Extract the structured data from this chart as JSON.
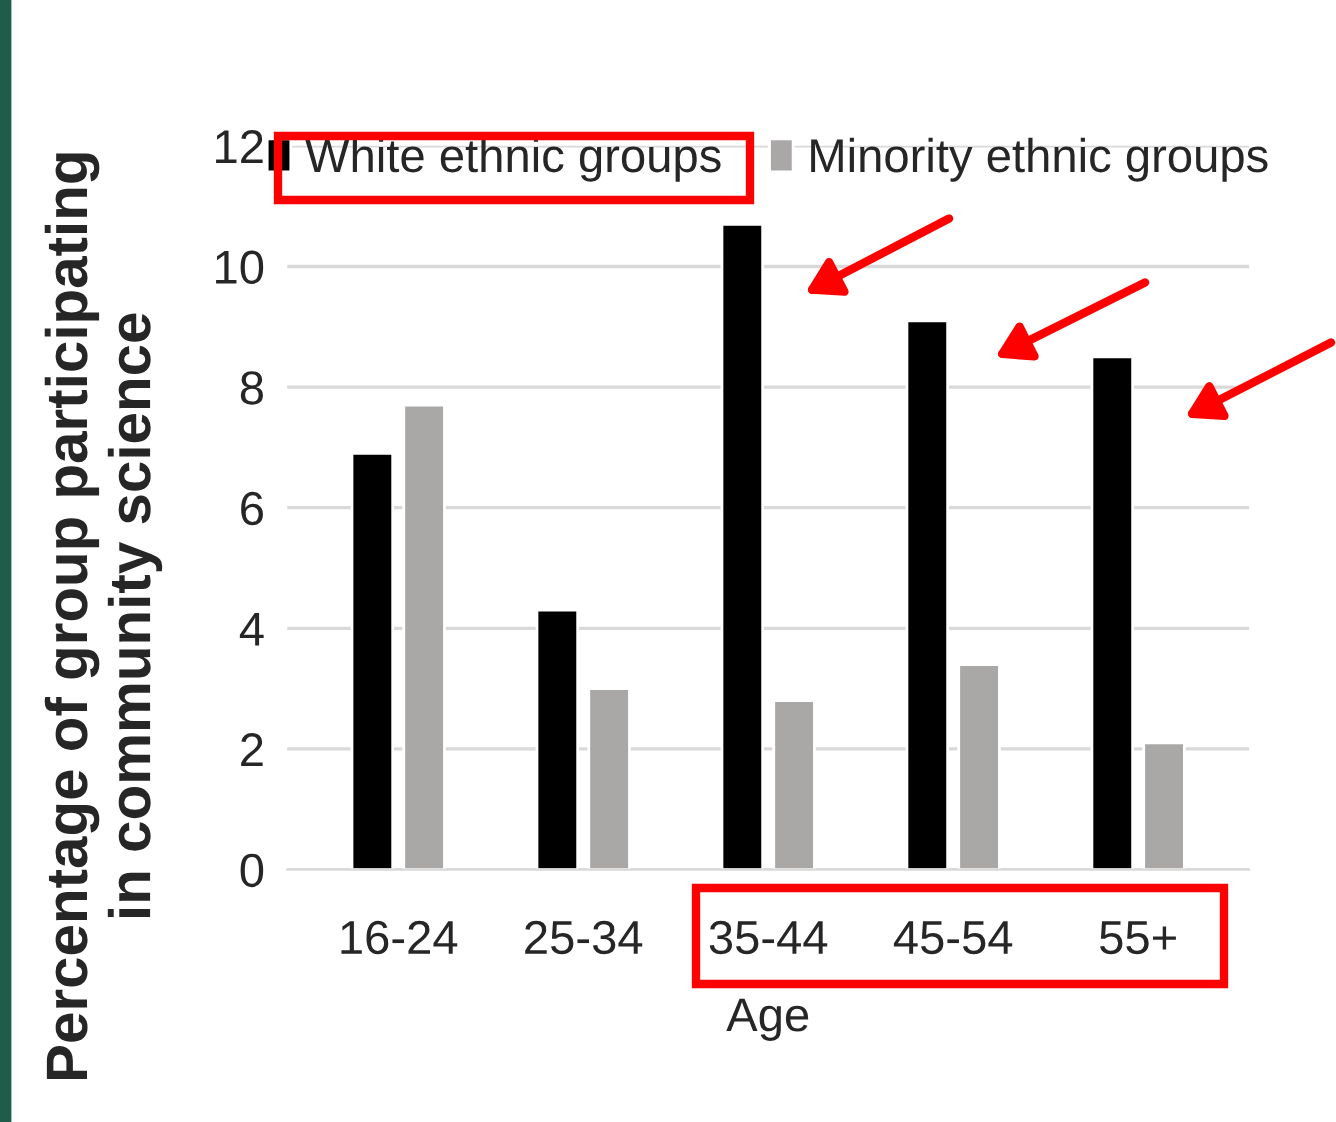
{
  "chart_data": {
    "type": "bar",
    "xlabel": "Age",
    "ylabel": "Percentage of group participating\nin community science",
    "categories": [
      "16-24",
      "25-34",
      "35-44",
      "45-54",
      "55+"
    ],
    "series": [
      {
        "name": "White ethnic groups",
        "color": "#000000",
        "values": [
          6.9,
          4.3,
          10.7,
          9.1,
          8.5
        ]
      },
      {
        "name": "Minority ethnic groups",
        "color": "#aaa7a7",
        "values": [
          7.7,
          3.0,
          2.8,
          3.4,
          2.1
        ]
      }
    ],
    "ylim": [
      0,
      12
    ],
    "yticks": [
      0,
      2,
      4,
      6,
      8,
      10,
      12
    ],
    "grid": "y",
    "legend": "top"
  }
}
